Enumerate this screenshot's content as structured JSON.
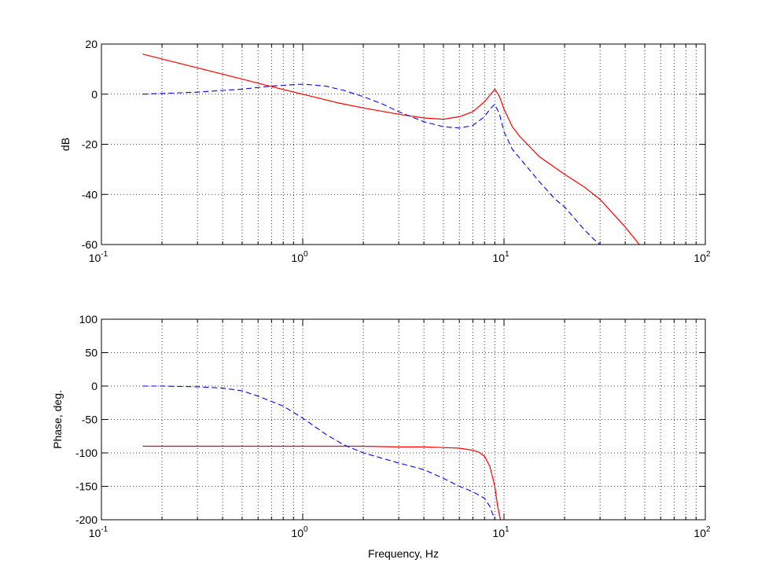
{
  "chart_data": [
    {
      "type": "line",
      "xscale": "log",
      "xlim": [
        0.1,
        100
      ],
      "ylim": [
        -60,
        20
      ],
      "yticks": [
        -60,
        -40,
        -20,
        0,
        20
      ],
      "xticks": [
        {
          "base": "10",
          "exp": "-1"
        },
        {
          "base": "10",
          "exp": "0"
        },
        {
          "base": "10",
          "exp": "1"
        },
        {
          "base": "10",
          "exp": "2"
        }
      ],
      "xlabel": "",
      "ylabel": "dB",
      "grid": true,
      "series": [
        {
          "style": "solid",
          "color": "#ff0000",
          "x": [
            0.16,
            0.3,
            0.5,
            0.7,
            1.0,
            1.5,
            2,
            3,
            4,
            5,
            6,
            7,
            8,
            8.5,
            9,
            9.5,
            10,
            11,
            12,
            15,
            20,
            25,
            30,
            40,
            47
          ],
          "y": [
            16,
            10.5,
            6,
            3,
            0,
            -3.5,
            -5.5,
            -8,
            -9.5,
            -10,
            -9,
            -7,
            -3,
            -0.5,
            2,
            -1,
            -6,
            -13,
            -17,
            -25,
            -32,
            -37,
            -42,
            -53,
            -60
          ]
        },
        {
          "style": "dashed",
          "color": "#0000ff",
          "x": [
            0.16,
            0.2,
            0.3,
            0.4,
            0.5,
            0.7,
            1.0,
            1.3,
            1.6,
            2,
            2.5,
            3,
            4,
            5,
            6,
            7,
            8,
            8.5,
            9,
            9.5,
            10,
            11,
            13,
            15,
            18,
            20,
            25,
            28,
            30
          ],
          "y": [
            0,
            0.3,
            0.8,
            1.5,
            2,
            3.2,
            4,
            3.2,
            1.5,
            -1,
            -4,
            -7,
            -11,
            -13,
            -13.5,
            -12.5,
            -9,
            -6,
            -4,
            -8,
            -15,
            -22,
            -29,
            -35,
            -42,
            -45,
            -54,
            -58,
            -60
          ]
        }
      ]
    },
    {
      "type": "line",
      "xscale": "log",
      "xlim": [
        0.1,
        100
      ],
      "ylim": [
        -200,
        100
      ],
      "yticks": [
        -200,
        -150,
        -100,
        -50,
        0,
        50,
        100
      ],
      "xticks": [
        {
          "base": "10",
          "exp": "-1"
        },
        {
          "base": "10",
          "exp": "0"
        },
        {
          "base": "10",
          "exp": "1"
        },
        {
          "base": "10",
          "exp": "2"
        }
      ],
      "xlabel": "Frequency, Hz",
      "ylabel": "Phase, deg.",
      "grid": true,
      "series": [
        {
          "style": "solid",
          "color": "#ff0000",
          "x": [
            0.16,
            0.5,
            1,
            2,
            3,
            4,
            5,
            6,
            7,
            7.5,
            8,
            8.5,
            9,
            9.3,
            9.6
          ],
          "y": [
            -90,
            -90,
            -90,
            -90,
            -91,
            -91,
            -92,
            -93,
            -96,
            -99,
            -105,
            -120,
            -150,
            -180,
            -200
          ]
        },
        {
          "style": "dashed",
          "color": "#0000ff",
          "x": [
            0.16,
            0.2,
            0.3,
            0.4,
            0.5,
            0.6,
            0.8,
            1.0,
            1.3,
            1.6,
            2,
            3,
            4,
            5,
            6,
            7,
            8,
            8.5,
            9
          ],
          "y": [
            0,
            0,
            -1,
            -3,
            -7,
            -15,
            -30,
            -48,
            -72,
            -88,
            -100,
            -115,
            -125,
            -138,
            -150,
            -158,
            -168,
            -180,
            -200
          ]
        }
      ]
    }
  ]
}
